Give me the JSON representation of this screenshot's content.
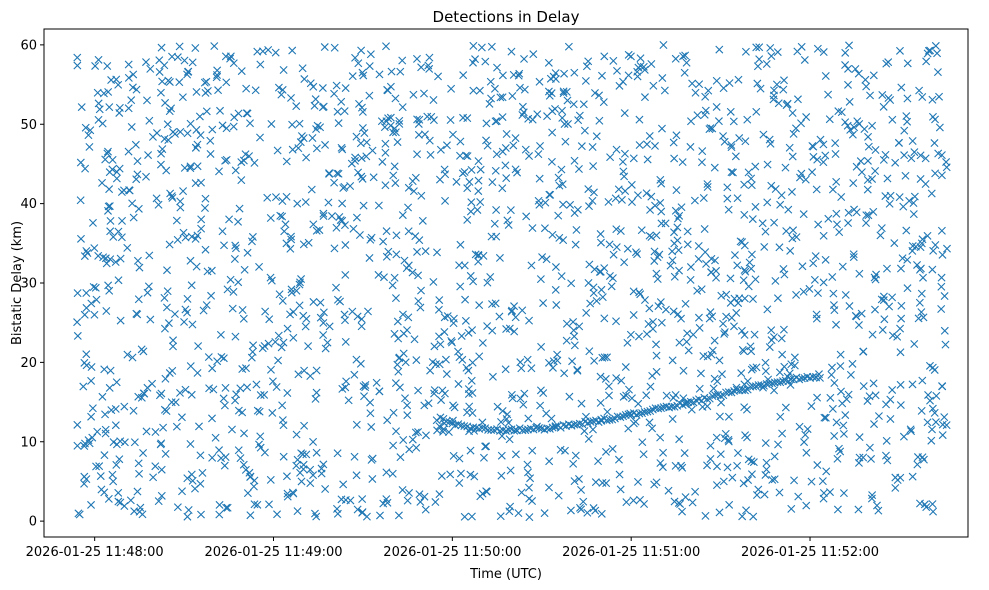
{
  "chart_data": {
    "type": "scatter",
    "title": "Detections in Delay",
    "xlabel": "Time (UTC)",
    "ylabel": "Bistatic Delay (km)",
    "x_ticks": [
      "2026-01-25 11:48:00",
      "2026-01-25 11:49:00",
      "2026-01-25 11:50:00",
      "2026-01-25 11:51:00",
      "2026-01-25 11:52:00"
    ],
    "xlim": [
      "2026-01-25 11:47:43",
      "2026-01-25 11:52:53"
    ],
    "ylim": [
      -2,
      62
    ],
    "y_ticks": [
      0,
      10,
      20,
      30,
      40,
      50,
      60
    ],
    "grid": false,
    "marker": "x",
    "color": "#1f77b4",
    "noise": {
      "x_range": [
        "2026-01-25 11:47:54",
        "2026-01-25 11:52:46"
      ],
      "y_range": [
        0.5,
        60
      ],
      "approx_count": 2000
    },
    "series": [
      {
        "x": [
          "2026-01-25 11:49:56",
          "2026-01-25 11:49:58",
          "2026-01-25 11:50:00",
          "2026-01-25 11:50:02",
          "2026-01-25 11:50:04",
          "2026-01-25 11:50:06",
          "2026-01-25 11:50:08",
          "2026-01-25 11:50:10",
          "2026-01-25 11:50:12",
          "2026-01-25 11:50:14",
          "2026-01-25 11:50:16",
          "2026-01-25 11:50:18",
          "2026-01-25 11:50:30"
        ],
        "y": [
          13.0,
          12.6,
          12.3,
          12.1,
          11.95,
          11.8,
          11.7,
          11.6,
          11.55,
          11.5,
          11.45,
          11.5,
          11.6
        ]
      },
      {
        "x": [
          "2026-01-25 11:50:30",
          "2026-01-25 11:50:40",
          "2026-01-25 11:50:50",
          "2026-01-25 11:51:00",
          "2026-01-25 11:51:10",
          "2026-01-25 11:51:20",
          "2026-01-25 11:51:30",
          "2026-01-25 11:51:40",
          "2026-01-25 11:51:50",
          "2026-01-25 11:52:00",
          "2026-01-25 11:52:04"
        ],
        "y": [
          11.6,
          12.1,
          12.7,
          13.4,
          14.2,
          15.0,
          15.9,
          16.8,
          17.6,
          18.2,
          18.4
        ]
      }
    ]
  }
}
